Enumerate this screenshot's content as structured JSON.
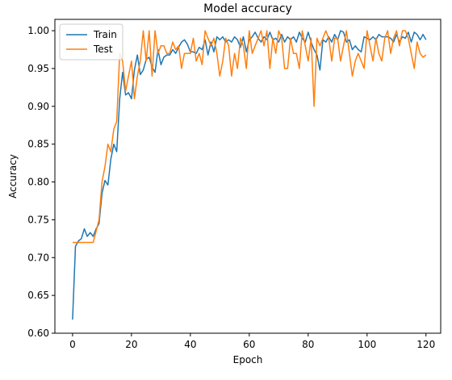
{
  "chart_data": {
    "type": "line",
    "title": "Model accuracy",
    "xlabel": "Epoch",
    "ylabel": "Accuracy",
    "xlim": [
      -6,
      125
    ],
    "ylim": [
      0.6,
      1.015
    ],
    "xticks": [
      0,
      20,
      40,
      60,
      80,
      100,
      120
    ],
    "xtick_labels": [
      "0",
      "20",
      "40",
      "60",
      "80",
      "100",
      "120"
    ],
    "yticks": [
      0.6,
      0.65,
      0.7,
      0.75,
      0.8,
      0.85,
      0.9,
      0.95,
      1.0
    ],
    "ytick_labels": [
      "0.60",
      "0.65",
      "0.70",
      "0.75",
      "0.80",
      "0.85",
      "0.90",
      "0.95",
      "1.00"
    ],
    "grid": false,
    "legend_position": "top-left",
    "series": [
      {
        "name": "Train",
        "color": "#1f77b4",
        "values": [
          0.618,
          0.715,
          0.722,
          0.725,
          0.738,
          0.728,
          0.733,
          0.728,
          0.738,
          0.745,
          0.785,
          0.802,
          0.796,
          0.83,
          0.85,
          0.84,
          0.91,
          0.945,
          0.915,
          0.918,
          0.91,
          0.948,
          0.968,
          0.942,
          0.948,
          0.962,
          0.965,
          0.952,
          0.945,
          0.975,
          0.955,
          0.965,
          0.968,
          0.968,
          0.975,
          0.97,
          0.978,
          0.985,
          0.988,
          0.982,
          0.972,
          0.972,
          0.97,
          0.978,
          0.975,
          0.988,
          0.968,
          0.985,
          0.972,
          0.992,
          0.988,
          0.992,
          0.985,
          0.988,
          0.985,
          0.992,
          0.988,
          0.978,
          0.992,
          0.972,
          0.988,
          0.992,
          0.998,
          0.99,
          0.985,
          0.992,
          0.988,
          0.998,
          0.988,
          0.99,
          0.985,
          0.995,
          0.985,
          0.992,
          0.988,
          0.992,
          0.985,
          0.998,
          0.99,
          0.985,
          0.998,
          0.985,
          0.975,
          0.968,
          0.948,
          0.988,
          0.985,
          0.992,
          0.985,
          0.995,
          0.988,
          1.0,
          0.998,
          0.985,
          0.988,
          0.975,
          0.98,
          0.975,
          0.972,
          0.992,
          0.99,
          0.988,
          0.992,
          0.988,
          0.995,
          0.992,
          0.992,
          0.992,
          0.99,
          0.985,
          0.995,
          0.985,
          0.992,
          0.99,
          0.998,
          0.985,
          0.998,
          0.995,
          0.988,
          0.995,
          0.988
        ]
      },
      {
        "name": "Test",
        "color": "#ff7f0e",
        "values": [
          0.72,
          0.72,
          0.72,
          0.72,
          0.72,
          0.72,
          0.72,
          0.72,
          0.735,
          0.75,
          0.8,
          0.82,
          0.85,
          0.84,
          0.87,
          0.88,
          0.97,
          0.96,
          0.92,
          0.94,
          0.96,
          0.91,
          0.94,
          0.96,
          1.0,
          0.96,
          1.0,
          0.94,
          1.0,
          0.97,
          0.98,
          0.98,
          0.97,
          0.97,
          0.985,
          0.975,
          0.98,
          0.95,
          0.97,
          0.97,
          0.97,
          0.99,
          0.96,
          0.97,
          0.955,
          1.0,
          0.99,
          0.98,
          0.99,
          0.97,
          0.94,
          0.96,
          0.99,
          0.98,
          0.94,
          0.97,
          0.95,
          0.99,
          0.98,
          0.95,
          1.0,
          0.97,
          0.98,
          0.99,
          1.0,
          0.98,
          1.0,
          0.95,
          0.99,
          0.97,
          1.0,
          0.99,
          0.95,
          0.95,
          0.99,
          0.97,
          0.97,
          0.95,
          1.0,
          0.98,
          0.96,
          0.99,
          0.9,
          0.99,
          0.98,
          0.99,
          1.0,
          0.99,
          0.96,
          0.99,
          0.99,
          0.96,
          0.98,
          1.0,
          0.97,
          0.94,
          0.96,
          0.97,
          0.96,
          0.95,
          1.0,
          0.98,
          0.96,
          0.99,
          0.97,
          0.96,
          0.99,
          1.0,
          0.97,
          0.99,
          1.0,
          0.98,
          1.0,
          1.0,
          0.99,
          0.97,
          0.95,
          0.985,
          0.97,
          0.965,
          0.968
        ]
      }
    ]
  }
}
